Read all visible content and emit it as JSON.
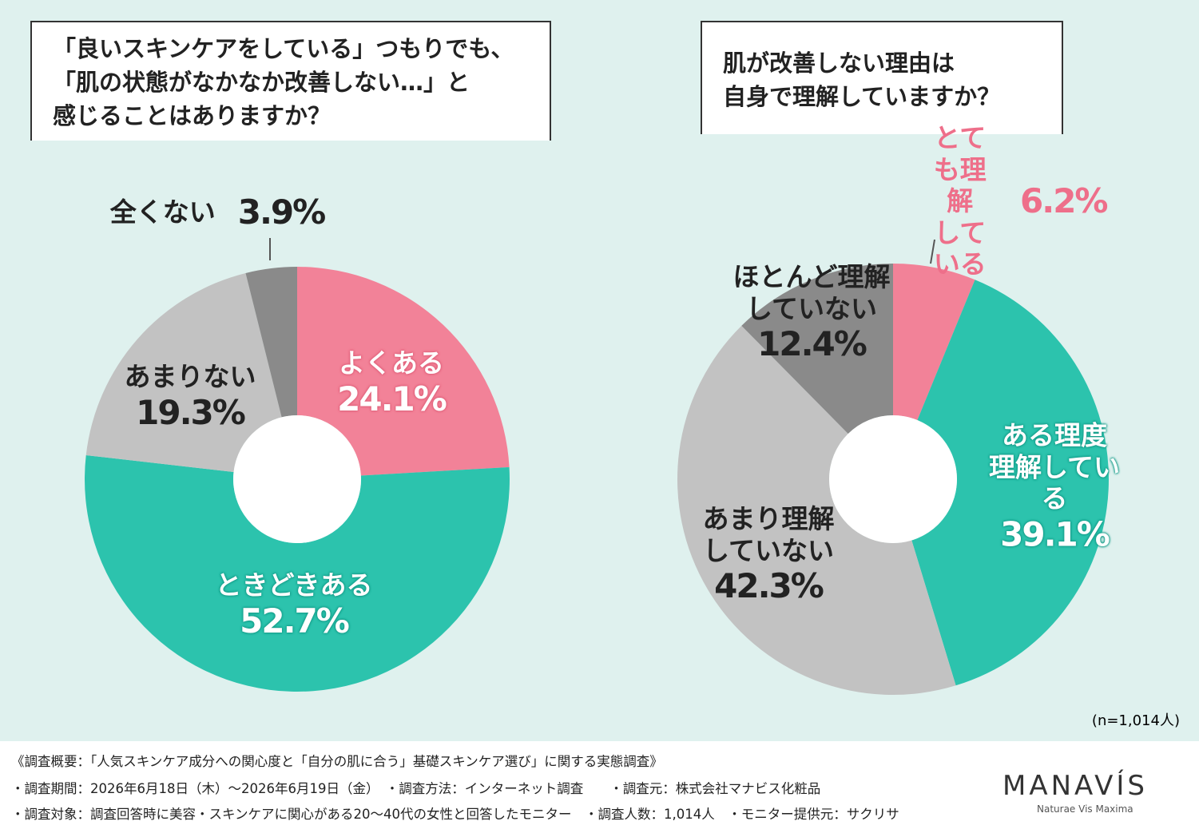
{
  "chart_data": [
    {
      "type": "donut",
      "title": "「良いスキンケアをしている」つもりでも、\n「肌の状態がなかなか改善しない…」と\n感じることはありますか？",
      "categories": [
        "よくある",
        "ときどきある",
        "あまりない",
        "全くない"
      ],
      "values": [
        24.1,
        52.7,
        19.3,
        3.9
      ],
      "value_labels": [
        "24.1%",
        "52.7%",
        "19.3%",
        "3.9%"
      ],
      "colors": [
        "#f28298",
        "#2cc3ad",
        "#c2c2c2",
        "#8a8a8a"
      ]
    },
    {
      "type": "donut",
      "title": "肌が改善しない理由は\n自身で理解していますか？",
      "categories": [
        "とても理解\nしている",
        "ある理度\n理解している",
        "あまり理解\nしていない",
        "ほとんど理解\nしていない"
      ],
      "values": [
        6.2,
        39.1,
        42.3,
        12.4
      ],
      "value_labels": [
        "6.2%",
        "39.1%",
        "42.3%",
        "12.4%"
      ],
      "colors": [
        "#f28298",
        "#2cc3ad",
        "#c2c2c2",
        "#8a8a8a"
      ]
    }
  ],
  "sample_note": "(n=1,014人)",
  "footer": {
    "heading": "《調査概要：「人気スキンケア成分への関心度と「自分の肌に合う」基礎スキンケア選び」に関する実態調査》",
    "lines": [
      "・調査期間：2026年6月18日（木）～2026年6月19日（金）　・調査方法：インターネット調査　　・調査元：株式会社マナビス化粧品",
      "・調査対象：調査回答時に美容・スキンケアに関心がある20～40代の女性と回答したモニター　・調査人数：1,014人　・モニター提供元：サクリサ"
    ],
    "logo": "MANAVÍS",
    "tagline": "Naturae Vis Maxima"
  }
}
